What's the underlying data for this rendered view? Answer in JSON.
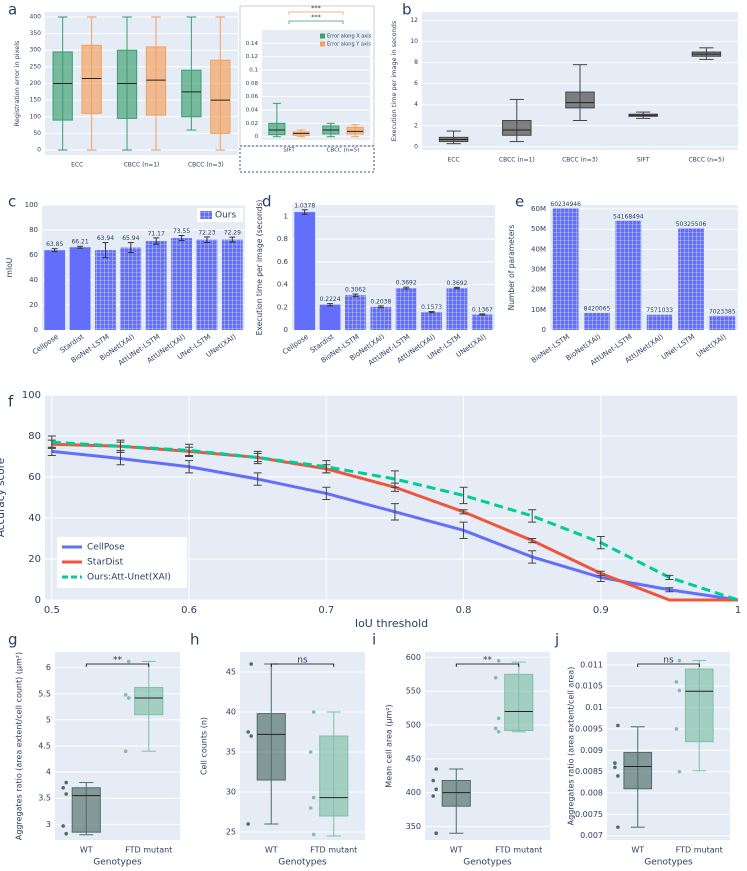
{
  "chart_data": [
    {
      "type": "box",
      "panel": "a",
      "ylabel": "Registration error in pixels",
      "categories": [
        "ECC",
        "CBCC (n=1)",
        "CBCC (n=3)"
      ],
      "series": [
        {
          "color": "#3a9e6e",
          "values": [
            [
              0,
              90,
              200,
              295,
              400
            ],
            [
              0,
              95,
              200,
              300,
              400
            ],
            [
              60,
              100,
              175,
              240,
              400
            ]
          ]
        },
        {
          "color": "#f5a05a",
          "values": [
            [
              0,
              110,
              215,
              315,
              400
            ],
            [
              0,
              105,
              210,
              310,
              400
            ],
            [
              0,
              50,
              150,
              270,
              400
            ]
          ]
        }
      ],
      "ylim": [
        -15,
        415
      ],
      "yticks": [
        0,
        50,
        100,
        150,
        200,
        250,
        300,
        350,
        400
      ],
      "grid": true
    },
    {
      "type": "box",
      "categories": [
        "SIFT",
        "CBCC (n=5)"
      ],
      "series": [
        {
          "name": "Error along X axis",
          "color": "#3a9e6e",
          "values": [
            [
              0,
              0.003,
              0.01,
              0.02,
              0.05
            ],
            [
              0,
              0.004,
              0.01,
              0.016,
              0.02
            ]
          ]
        },
        {
          "name": "Error along Y axis",
          "color": "#f5a05a",
          "values": [
            [
              0,
              0.002,
              0.005,
              0.007,
              0.01
            ],
            [
              0,
              0.004,
              0.008,
              0.014,
              0.018
            ]
          ]
        }
      ],
      "ylim": [
        -0.005,
        0.16
      ],
      "yticks": [
        0,
        0.02,
        0.04,
        0.06,
        0.08,
        0.1,
        0.12,
        0.14
      ],
      "legend": "upper right",
      "grid": true,
      "significance": [
        {
          "label": "***",
          "color": "#f5a05a"
        },
        {
          "label": "***",
          "color": "#3a9e6e"
        }
      ]
    },
    {
      "type": "box",
      "panel": "b",
      "ylabel": "Execution time per image in seconds",
      "categories": [
        "ECC",
        "CBCC (n=1)",
        "CBCC (n=3)",
        "SIFT",
        "CBCC (n=5)"
      ],
      "series": [
        {
          "color": "#444444",
          "values": [
            [
              0.3,
              0.5,
              0.7,
              0.9,
              1.5
            ],
            [
              0.5,
              1.1,
              1.6,
              2.5,
              4.5
            ],
            [
              2.5,
              3.7,
              4.2,
              5.2,
              7.8
            ],
            [
              2.7,
              2.9,
              3.0,
              3.1,
              3.3
            ],
            [
              8.3,
              8.6,
              8.8,
              9.0,
              9.4
            ]
          ]
        }
      ],
      "ylim": [
        -0.3,
        12.8
      ],
      "yticks": [
        0,
        2,
        4,
        6,
        8,
        10,
        12
      ],
      "grid": true
    },
    {
      "type": "bar",
      "panel": "c",
      "ylabel": "mIoU",
      "categories": [
        "Cellpose",
        "Stardist",
        "BioNet-LSTM",
        "BioNet(XAI)",
        "AttUNet-LSTM",
        "AttUNet(XAI)",
        "UNet-LSTM",
        "UNet(XAI)"
      ],
      "values": [
        63.85,
        66.21,
        63.94,
        65.94,
        71.17,
        73.55,
        72.23,
        72.29
      ],
      "errors": [
        1.2,
        0.8,
        6,
        4,
        2.5,
        2,
        2.2,
        2
      ],
      "hatched": [
        false,
        false,
        true,
        true,
        true,
        true,
        true,
        true
      ],
      "color": "#636efa",
      "legend_label": "Ours",
      "legend": "upper right",
      "ylim": [
        0,
        100
      ],
      "yticks": [
        0,
        20,
        40,
        60,
        80,
        100
      ],
      "grid": true
    },
    {
      "type": "bar",
      "panel": "d",
      "ylabel": "Execution time per image (seconds)",
      "categories": [
        "Cellpose",
        "Stardist",
        "BioNet-LSTM",
        "BioNet(XAI)",
        "AttUNet-LSTM",
        "AttUNet(XAI)",
        "UNet-LSTM",
        "UNet(XAI)"
      ],
      "values": [
        1.0378,
        0.2224,
        0.3062,
        0.2038,
        0.3692,
        0.1573,
        0.3692,
        0.1367
      ],
      "errors": [
        0.02,
        0.01,
        0.01,
        0.008,
        0.008,
        0.005,
        0.006,
        0.005
      ],
      "hatched": [
        false,
        false,
        true,
        true,
        true,
        true,
        true,
        true
      ],
      "color": "#636efa",
      "ylim": [
        0,
        1.1
      ],
      "yticks": [
        0,
        0.2,
        0.4,
        0.6,
        0.8,
        1
      ],
      "grid": true
    },
    {
      "type": "bar",
      "panel": "e",
      "ylabel": "Number of parameters",
      "categories": [
        "BioNet-LSTM",
        "BioNet(XAI)",
        "AttUNet-LSTM",
        "AttUNet(XAI)",
        "UNet-LSTM",
        "UNet(XAI)"
      ],
      "values": [
        60234946,
        8420065,
        54168494,
        7571033,
        50325506,
        7023385
      ],
      "hatched": [
        true,
        true,
        true,
        true,
        true,
        true
      ],
      "color": "#636efa",
      "ylim": [
        0,
        62000000
      ],
      "yticks": [
        0,
        {
          "value": 10000000,
          "label": "10M"
        },
        {
          "value": 20000000,
          "label": "20M"
        },
        {
          "value": 30000000,
          "label": "30M"
        },
        {
          "value": 40000000,
          "label": "40M"
        },
        {
          "value": 50000000,
          "label": "50M"
        },
        {
          "value": 60000000,
          "label": "60M"
        }
      ],
      "grid": true
    },
    {
      "type": "line",
      "panel": "f",
      "xlabel": "IoU threshold",
      "ylabel": "Accuracy score",
      "x": [
        0.5,
        0.55,
        0.6,
        0.65,
        0.7,
        0.75,
        0.8,
        0.85,
        0.9,
        0.95,
        1
      ],
      "series": [
        {
          "name": "CellPose",
          "color": "#636efa",
          "values": [
            72.5,
            69,
            65,
            59,
            52,
            43,
            34,
            21,
            11,
            5,
            0
          ],
          "errors": [
            2,
            3,
            3,
            3,
            3,
            4,
            4,
            3,
            2,
            1,
            0
          ]
        },
        {
          "name": "StarDist",
          "color": "#ef553b",
          "values": [
            76,
            75,
            72.5,
            69.5,
            64,
            55,
            43,
            29,
            13,
            0,
            0
          ],
          "errors": [
            2,
            2,
            2,
            2,
            2,
            2,
            1,
            1,
            1,
            0,
            0
          ]
        },
        {
          "name": "Ours:Att-Unet(XAI)",
          "color": "#00cc96",
          "dash": "dashed",
          "values": [
            77,
            75,
            73,
            69.5,
            65,
            59,
            51,
            41,
            28,
            11,
            0
          ],
          "errors": [
            3,
            3,
            3,
            3,
            3,
            4,
            4,
            3,
            3,
            1,
            0
          ]
        }
      ],
      "xlim": [
        0.495,
        1
      ],
      "ylim": [
        0,
        100
      ],
      "xticks": [
        0.5,
        0.6,
        0.7,
        0.8,
        0.9,
        1
      ],
      "yticks": [
        0,
        20,
        40,
        60,
        80,
        100
      ],
      "legend": "lower left",
      "grid": true
    },
    {
      "type": "box",
      "panel": "g",
      "xlabel": "Genotypes",
      "ylabel": "Aggregates ratio (area extent/cell count) (μm²)",
      "categories": [
        "WT",
        "FTD mutant"
      ],
      "series": [
        {
          "colors": [
            "#4f6b66",
            "#7fbfa6"
          ],
          "values": [
            [
              2.8,
              2.85,
              3.55,
              3.7,
              3.8
            ],
            [
              4.4,
              5.1,
              5.42,
              5.62,
              6.12
            ]
          ],
          "points": [
            [
              3.8,
              3.7,
              3.58,
              2.97,
              2.82
            ],
            [
              6.12,
              5.48,
              5.42,
              4.4
            ]
          ]
        }
      ],
      "ylim": [
        2.7,
        6.3
      ],
      "yticks": [
        3,
        3.5,
        4,
        4.5,
        5,
        5.5,
        6
      ],
      "significance": [
        {
          "label": "**"
        }
      ],
      "grid": true
    },
    {
      "type": "box",
      "panel": "h",
      "xlabel": "Genotypes",
      "ylabel": "Cell counts (n)",
      "categories": [
        "WT",
        "FTD mutant"
      ],
      "series": [
        {
          "colors": [
            "#4f6b66",
            "#7fbfa6"
          ],
          "values": [
            [
              26,
              31.5,
              37.2,
              39.8,
              46
            ],
            [
              24.5,
              27,
              29.3,
              37,
              40
            ]
          ],
          "points": [
            [
              46,
              37.5,
              37,
              26
            ],
            [
              40,
              35,
              29.3,
              28,
              24.7
            ]
          ]
        }
      ],
      "ylim": [
        24,
        47.5
      ],
      "yticks": [
        25,
        30,
        35,
        40,
        45
      ],
      "significance": [
        {
          "label": "ns"
        }
      ],
      "grid": true
    },
    {
      "type": "box",
      "panel": "i",
      "xlabel": "Genotypes",
      "ylabel": "Mean cell area (μm²)",
      "categories": [
        "WT",
        "FTD mutant"
      ],
      "series": [
        {
          "colors": [
            "#4f6b66",
            "#7fbfa6"
          ],
          "values": [
            [
              340,
              380,
              400,
              418,
              435
            ],
            [
              490,
              492,
              520,
              575,
              593
            ]
          ],
          "points": [
            [
              435,
              418,
              405,
              395,
              340
            ],
            [
              595,
              570,
              510,
              495,
              490
            ]
          ]
        }
      ],
      "ylim": [
        330,
        608
      ],
      "yticks": [
        350,
        400,
        450,
        500,
        550,
        600
      ],
      "significance": [
        {
          "label": "**"
        }
      ],
      "grid": true
    },
    {
      "type": "box",
      "panel": "j",
      "xlabel": "Genotypes",
      "ylabel": "Aggregates ratio (area extent/cell area)",
      "categories": [
        "WT",
        "FTD mutant"
      ],
      "series": [
        {
          "colors": [
            "#4f6b66",
            "#7fbfa6"
          ],
          "values": [
            [
              0.0072,
              0.0081,
              0.00862,
              0.00895,
              0.00955
            ],
            [
              0.00852,
              0.0092,
              0.01038,
              0.0109,
              0.0111
            ]
          ],
          "points": [
            [
              0.00958,
              0.0087,
              0.0084,
              0.0086,
              0.0072
            ],
            [
              0.0111,
              0.0106,
              0.0104,
              0.0095,
              0.0085
            ]
          ]
        }
      ],
      "ylim": [
        0.0069,
        0.0113
      ],
      "yticks": [
        0.007,
        0.0075,
        0.008,
        0.0085,
        0.009,
        0.0095,
        0.01,
        0.0105,
        0.011
      ],
      "significance": [
        {
          "label": "ns"
        }
      ],
      "grid": true
    }
  ]
}
